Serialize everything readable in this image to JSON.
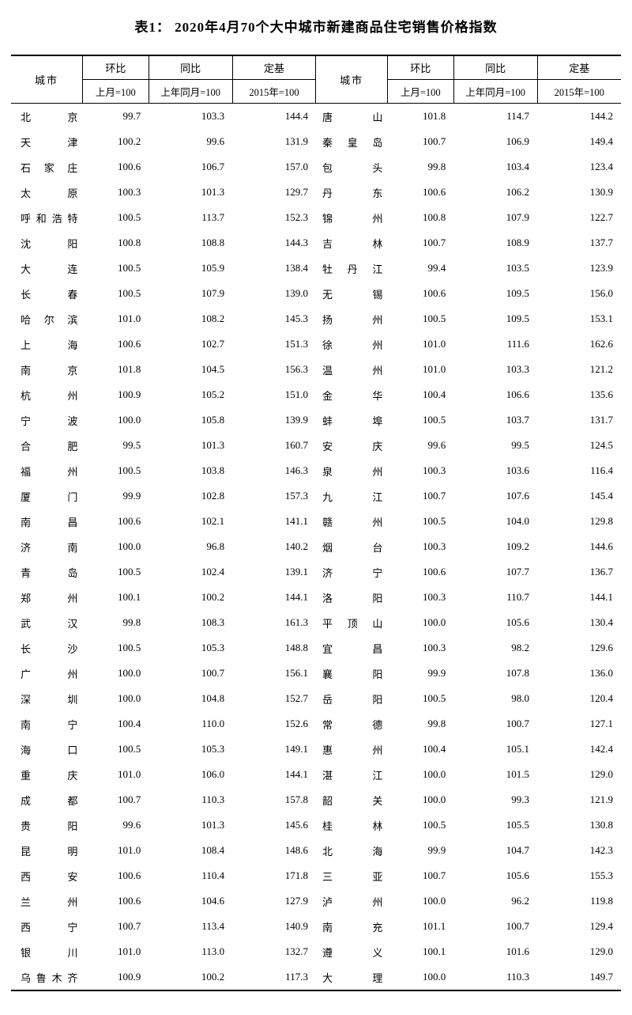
{
  "title": "表1： 2020年4月70个大中城市新建商品住宅销售价格指数",
  "columns": {
    "city": "城市",
    "mom": "环比",
    "yoy": "同比",
    "base": "定基",
    "mom_base": "上月=100",
    "yoy_base": "上年同月=100",
    "base_base": "2015年=100"
  },
  "left": [
    {
      "city": "北　　京",
      "mom": "99.7",
      "yoy": "103.3",
      "base": "144.4"
    },
    {
      "city": "天　　津",
      "mom": "100.2",
      "yoy": "99.6",
      "base": "131.9"
    },
    {
      "city": "石 家 庄",
      "mom": "100.6",
      "yoy": "106.7",
      "base": "157.0"
    },
    {
      "city": "太　　原",
      "mom": "100.3",
      "yoy": "101.3",
      "base": "129.7"
    },
    {
      "city": "呼和浩特",
      "mom": "100.5",
      "yoy": "113.7",
      "base": "152.3"
    },
    {
      "city": "沈　　阳",
      "mom": "100.8",
      "yoy": "108.8",
      "base": "144.3"
    },
    {
      "city": "大　　连",
      "mom": "100.5",
      "yoy": "105.9",
      "base": "138.4"
    },
    {
      "city": "长　　春",
      "mom": "100.5",
      "yoy": "107.9",
      "base": "139.0"
    },
    {
      "city": "哈 尔 滨",
      "mom": "101.0",
      "yoy": "108.2",
      "base": "145.3"
    },
    {
      "city": "上　　海",
      "mom": "100.6",
      "yoy": "102.7",
      "base": "151.3"
    },
    {
      "city": "南　　京",
      "mom": "101.8",
      "yoy": "104.5",
      "base": "156.3"
    },
    {
      "city": "杭　　州",
      "mom": "100.9",
      "yoy": "105.2",
      "base": "151.0"
    },
    {
      "city": "宁　　波",
      "mom": "100.0",
      "yoy": "105.8",
      "base": "139.9"
    },
    {
      "city": "合　　肥",
      "mom": "99.5",
      "yoy": "101.3",
      "base": "160.7"
    },
    {
      "city": "福　　州",
      "mom": "100.5",
      "yoy": "103.8",
      "base": "146.3"
    },
    {
      "city": "厦　　门",
      "mom": "99.9",
      "yoy": "102.8",
      "base": "157.3"
    },
    {
      "city": "南　　昌",
      "mom": "100.6",
      "yoy": "102.1",
      "base": "141.1"
    },
    {
      "city": "济　　南",
      "mom": "100.0",
      "yoy": "96.8",
      "base": "140.2"
    },
    {
      "city": "青　　岛",
      "mom": "100.5",
      "yoy": "102.4",
      "base": "139.1"
    },
    {
      "city": "郑　　州",
      "mom": "100.1",
      "yoy": "100.2",
      "base": "144.1"
    },
    {
      "city": "武　　汉",
      "mom": "99.8",
      "yoy": "108.3",
      "base": "161.3"
    },
    {
      "city": "长　　沙",
      "mom": "100.5",
      "yoy": "105.3",
      "base": "148.8"
    },
    {
      "city": "广　　州",
      "mom": "100.0",
      "yoy": "100.7",
      "base": "156.1"
    },
    {
      "city": "深　　圳",
      "mom": "100.0",
      "yoy": "104.8",
      "base": "152.7"
    },
    {
      "city": "南　　宁",
      "mom": "100.4",
      "yoy": "110.0",
      "base": "152.6"
    },
    {
      "city": "海　　口",
      "mom": "100.5",
      "yoy": "105.3",
      "base": "149.1"
    },
    {
      "city": "重　　庆",
      "mom": "101.0",
      "yoy": "106.0",
      "base": "144.1"
    },
    {
      "city": "成　　都",
      "mom": "100.7",
      "yoy": "110.3",
      "base": "157.8"
    },
    {
      "city": "贵　　阳",
      "mom": "99.6",
      "yoy": "101.3",
      "base": "145.6"
    },
    {
      "city": "昆　　明",
      "mom": "101.0",
      "yoy": "108.4",
      "base": "148.6"
    },
    {
      "city": "西　　安",
      "mom": "100.6",
      "yoy": "110.4",
      "base": "171.8"
    },
    {
      "city": "兰　　州",
      "mom": "100.6",
      "yoy": "104.6",
      "base": "127.9"
    },
    {
      "city": "西　　宁",
      "mom": "100.7",
      "yoy": "113.4",
      "base": "140.9"
    },
    {
      "city": "银　　川",
      "mom": "101.0",
      "yoy": "113.0",
      "base": "132.7"
    },
    {
      "city": "乌鲁木齐",
      "mom": "100.9",
      "yoy": "100.2",
      "base": "117.3"
    }
  ],
  "right": [
    {
      "city": "唐　　山",
      "mom": "101.8",
      "yoy": "114.7",
      "base": "144.2"
    },
    {
      "city": "秦 皇 岛",
      "mom": "100.7",
      "yoy": "106.9",
      "base": "149.4"
    },
    {
      "city": "包　　头",
      "mom": "99.8",
      "yoy": "103.4",
      "base": "123.4"
    },
    {
      "city": "丹　　东",
      "mom": "100.6",
      "yoy": "106.2",
      "base": "130.9"
    },
    {
      "city": "锦　　州",
      "mom": "100.8",
      "yoy": "107.9",
      "base": "122.7"
    },
    {
      "city": "吉　　林",
      "mom": "100.7",
      "yoy": "108.9",
      "base": "137.7"
    },
    {
      "city": "牡 丹 江",
      "mom": "99.4",
      "yoy": "103.5",
      "base": "123.9"
    },
    {
      "city": "无　　锡",
      "mom": "100.6",
      "yoy": "109.5",
      "base": "156.0"
    },
    {
      "city": "扬　　州",
      "mom": "100.5",
      "yoy": "109.5",
      "base": "153.1"
    },
    {
      "city": "徐　　州",
      "mom": "101.0",
      "yoy": "111.6",
      "base": "162.6"
    },
    {
      "city": "温　　州",
      "mom": "101.0",
      "yoy": "103.3",
      "base": "121.2"
    },
    {
      "city": "金　　华",
      "mom": "100.4",
      "yoy": "106.6",
      "base": "135.6"
    },
    {
      "city": "蚌　　埠",
      "mom": "100.5",
      "yoy": "103.7",
      "base": "131.7"
    },
    {
      "city": "安　　庆",
      "mom": "99.6",
      "yoy": "99.5",
      "base": "124.5"
    },
    {
      "city": "泉　　州",
      "mom": "100.3",
      "yoy": "103.6",
      "base": "116.4"
    },
    {
      "city": "九　　江",
      "mom": "100.7",
      "yoy": "107.6",
      "base": "145.4"
    },
    {
      "city": "赣　　州",
      "mom": "100.5",
      "yoy": "104.0",
      "base": "129.8"
    },
    {
      "city": "烟　　台",
      "mom": "100.3",
      "yoy": "109.2",
      "base": "144.6"
    },
    {
      "city": "济　　宁",
      "mom": "100.6",
      "yoy": "107.7",
      "base": "136.7"
    },
    {
      "city": "洛　　阳",
      "mom": "100.3",
      "yoy": "110.7",
      "base": "144.1"
    },
    {
      "city": "平 顶 山",
      "mom": "100.0",
      "yoy": "105.6",
      "base": "130.4"
    },
    {
      "city": "宜　　昌",
      "mom": "100.3",
      "yoy": "98.2",
      "base": "129.6"
    },
    {
      "city": "襄　　阳",
      "mom": "99.9",
      "yoy": "107.8",
      "base": "136.0"
    },
    {
      "city": "岳　　阳",
      "mom": "100.5",
      "yoy": "98.0",
      "base": "120.4"
    },
    {
      "city": "常　　德",
      "mom": "99.8",
      "yoy": "100.7",
      "base": "127.1"
    },
    {
      "city": "惠　　州",
      "mom": "100.4",
      "yoy": "105.1",
      "base": "142.4"
    },
    {
      "city": "湛　　江",
      "mom": "100.0",
      "yoy": "101.5",
      "base": "129.0"
    },
    {
      "city": "韶　　关",
      "mom": "100.0",
      "yoy": "99.3",
      "base": "121.9"
    },
    {
      "city": "桂　　林",
      "mom": "100.5",
      "yoy": "105.5",
      "base": "130.8"
    },
    {
      "city": "北　　海",
      "mom": "99.9",
      "yoy": "104.7",
      "base": "142.3"
    },
    {
      "city": "三　　亚",
      "mom": "100.7",
      "yoy": "105.6",
      "base": "155.3"
    },
    {
      "city": "泸　　州",
      "mom": "100.0",
      "yoy": "96.2",
      "base": "119.8"
    },
    {
      "city": "南　　充",
      "mom": "101.1",
      "yoy": "100.7",
      "base": "129.4"
    },
    {
      "city": "遵　　义",
      "mom": "100.1",
      "yoy": "101.6",
      "base": "129.0"
    },
    {
      "city": "大　　理",
      "mom": "100.0",
      "yoy": "110.3",
      "base": "149.7"
    }
  ]
}
